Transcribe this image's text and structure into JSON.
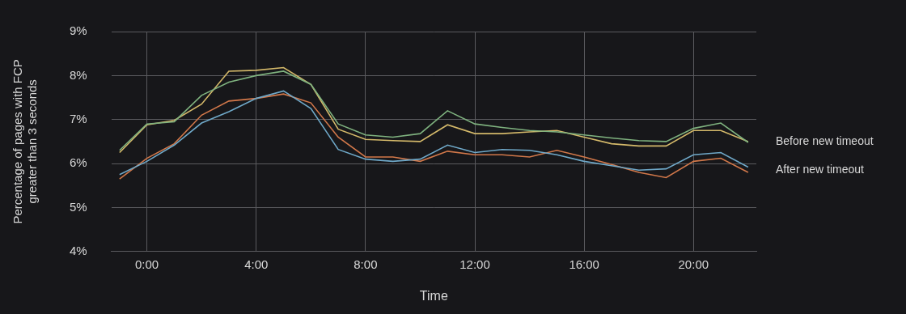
{
  "chart_data": {
    "type": "line",
    "x_label": "Time",
    "y_label": [
      "Percentage of pages with FCP",
      "greater than 3 seconds"
    ],
    "x": [
      -1,
      0,
      1,
      2,
      3,
      4,
      5,
      6,
      7,
      8,
      9,
      10,
      11,
      12,
      13,
      14,
      15,
      16,
      17,
      18,
      19,
      20,
      21,
      22
    ],
    "xlim": [
      -1.3,
      22.3
    ],
    "xticks": [
      {
        "value": 0,
        "label": "0:00"
      },
      {
        "value": 4,
        "label": "4:00"
      },
      {
        "value": 8,
        "label": "8:00"
      },
      {
        "value": 12,
        "label": "12:00"
      },
      {
        "value": 16,
        "label": "16:00"
      },
      {
        "value": 20,
        "label": "20:00"
      }
    ],
    "ylim": [
      4,
      9
    ],
    "yticks": [
      {
        "value": 4,
        "label": "4%"
      },
      {
        "value": 5,
        "label": "5%"
      },
      {
        "value": 6,
        "label": "6%"
      },
      {
        "value": 7,
        "label": "7%"
      },
      {
        "value": 8,
        "label": "8%"
      },
      {
        "value": 9,
        "label": "9%"
      }
    ],
    "grid": true,
    "series": [
      {
        "name": "Before new timeout",
        "color": "#7fb27f",
        "values": [
          6.3,
          6.9,
          6.95,
          7.55,
          7.85,
          8.0,
          8.1,
          7.8,
          6.9,
          6.65,
          6.6,
          6.68,
          7.2,
          6.9,
          6.82,
          6.75,
          6.72,
          6.65,
          6.58,
          6.52,
          6.5,
          6.8,
          6.92,
          6.48
        ]
      },
      {
        "name": "Before new timeout",
        "color": "#d4b96a",
        "values": [
          6.25,
          6.88,
          6.98,
          7.35,
          8.1,
          8.12,
          8.18,
          7.8,
          6.78,
          6.55,
          6.52,
          6.5,
          6.88,
          6.68,
          6.68,
          6.72,
          6.75,
          6.6,
          6.45,
          6.4,
          6.4,
          6.75,
          6.75,
          6.5
        ]
      },
      {
        "name": "After new timeout",
        "color": "#6fa8c8",
        "values": [
          5.75,
          6.05,
          6.42,
          6.92,
          7.18,
          7.48,
          7.65,
          7.25,
          6.32,
          6.1,
          6.05,
          6.1,
          6.42,
          6.25,
          6.32,
          6.3,
          6.2,
          6.05,
          5.95,
          5.85,
          5.88,
          6.2,
          6.25,
          5.92
        ]
      },
      {
        "name": "After new timeout",
        "color": "#d2784a",
        "values": [
          5.65,
          6.12,
          6.45,
          7.1,
          7.42,
          7.48,
          7.58,
          7.38,
          6.6,
          6.15,
          6.15,
          6.05,
          6.28,
          6.2,
          6.2,
          6.15,
          6.3,
          6.15,
          5.98,
          5.8,
          5.68,
          6.05,
          6.12,
          5.8
        ]
      }
    ]
  }
}
